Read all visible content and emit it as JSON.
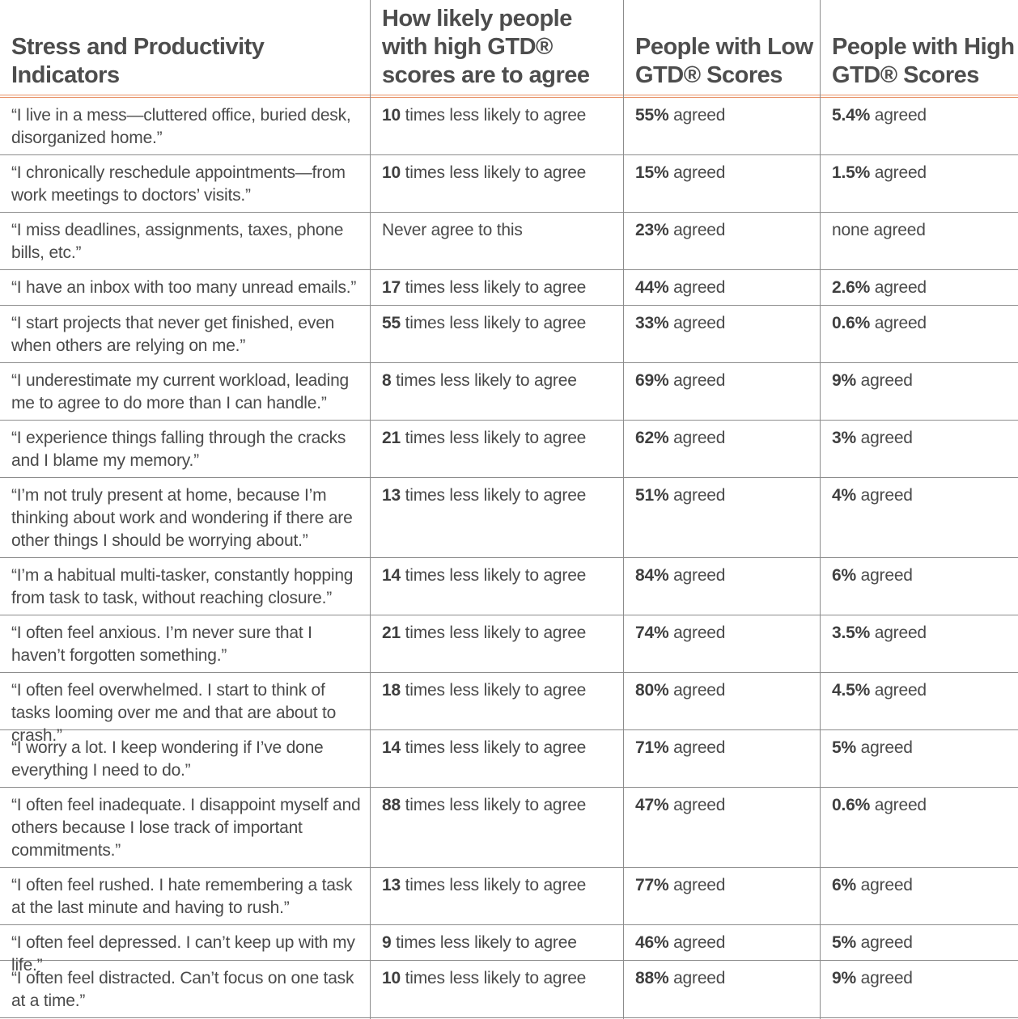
{
  "headers": {
    "col1": [
      "Stress and Productivity",
      "Indicators"
    ],
    "col2": [
      "How likely people",
      "with high GTD®",
      "scores are to agree"
    ],
    "col3": [
      "People with Low",
      "GTD® Scores"
    ],
    "col4": [
      "People with High",
      "GTD® Scores"
    ]
  },
  "rows": [
    {
      "indicator": "“I live in a mess—cluttered office, buried desk, disorganized home.”",
      "likely_num": "10",
      "likely_text": " times less likely to agree",
      "low_num": "55%",
      "low_text": " agreed",
      "high_num": "5.4%",
      "high_text": " agreed"
    },
    {
      "indicator": "“I chronically reschedule appointments—from work meetings to doctors’ visits.”",
      "likely_num": "10",
      "likely_text": " times less likely to agree",
      "low_num": "15%",
      "low_text": " agreed",
      "high_num": "1.5%",
      "high_text": " agreed"
    },
    {
      "indicator": "“I miss deadlines, assignments, taxes, phone bills, etc.”",
      "likely_num": "",
      "likely_text": "Never agree to this",
      "low_num": "23%",
      "low_text": " agreed",
      "high_num": "",
      "high_text": "none agreed"
    },
    {
      "indicator": "“I have an inbox with too many unread emails.”",
      "likely_num": "17",
      "likely_text": " times less likely to agree",
      "low_num": "44%",
      "low_text": " agreed",
      "high_num": "2.6%",
      "high_text": " agreed"
    },
    {
      "indicator": "“I start projects that never get finished, even when others are relying on me.”",
      "likely_num": "55",
      "likely_text": " times less likely to agree",
      "low_num": "33%",
      "low_text": " agreed",
      "high_num": "0.6%",
      "high_text": " agreed"
    },
    {
      "indicator": "“I underestimate my current workload, leading me to agree to do more than I can handle.”",
      "likely_num": "8",
      "likely_text": " times less likely to agree",
      "low_num": "69%",
      "low_text": " agreed",
      "high_num": "9%",
      "high_text": " agreed"
    },
    {
      "indicator": "“I experience things falling through the cracks and I blame my memory.”",
      "likely_num": "21",
      "likely_text": " times less likely to agree",
      "low_num": "62%",
      "low_text": " agreed",
      "high_num": "3%",
      "high_text": " agreed"
    },
    {
      "indicator": "“I’m not truly present at home, because I’m thinking about work and wondering if there are other things I should be worrying about.”",
      "likely_num": "13",
      "likely_text": " times less likely to agree",
      "low_num": "51%",
      "low_text": " agreed",
      "high_num": "4%",
      "high_text": " agreed"
    },
    {
      "indicator": "“I’m a habitual multi-tasker, constantly hopping from task to task, without reaching closure.”",
      "likely_num": "14",
      "likely_text": " times less likely to agree",
      "low_num": "84%",
      "low_text": " agreed",
      "high_num": "6%",
      "high_text": " agreed"
    },
    {
      "indicator": "“I often feel anxious. I’m never sure that I haven’t forgotten something.”",
      "likely_num": "21",
      "likely_text": " times less likely to agree",
      "low_num": "74%",
      "low_text": " agreed",
      "high_num": "3.5%",
      "high_text": " agreed"
    },
    {
      "indicator": "“I often feel overwhelmed. I start to think of tasks looming over me and that are about to crash.”",
      "likely_num": "18",
      "likely_text": " times less likely to agree",
      "low_num": "80%",
      "low_text": " agreed",
      "high_num": "4.5%",
      "high_text": " agreed"
    },
    {
      "indicator": "“I worry a lot. I keep wondering if I’ve done everything I need to do.”",
      "likely_num": "14",
      "likely_text": " times less likely to agree",
      "low_num": "71%",
      "low_text": " agreed",
      "high_num": "5%",
      "high_text": " agreed"
    },
    {
      "indicator": "“I often feel inadequate. I disappoint myself and others because I lose track of important commitments.”",
      "likely_num": "88",
      "likely_text": " times less likely to agree",
      "low_num": "47%",
      "low_text": " agreed",
      "high_num": "0.6%",
      "high_text": " agreed"
    },
    {
      "indicator": "“I often feel rushed. I hate remembering a task at the last minute and having to rush.”",
      "likely_num": "13",
      "likely_text": " times less likely to agree",
      "low_num": "77%",
      "low_text": " agreed",
      "high_num": "6%",
      "high_text": " agreed"
    },
    {
      "indicator": "“I often feel depressed. I can’t keep up with my life.”",
      "likely_num": "9",
      "likely_text": " times less likely to agree",
      "low_num": "46%",
      "low_text": " agreed",
      "high_num": "5%",
      "high_text": " agreed"
    },
    {
      "indicator": "“I often feel distracted. Can’t focus on one task at a time.”",
      "likely_num": "10",
      "likely_text": " times less likely to agree",
      "low_num": "88%",
      "low_text": " agreed",
      "high_num": "9%",
      "high_text": " agreed"
    }
  ]
}
